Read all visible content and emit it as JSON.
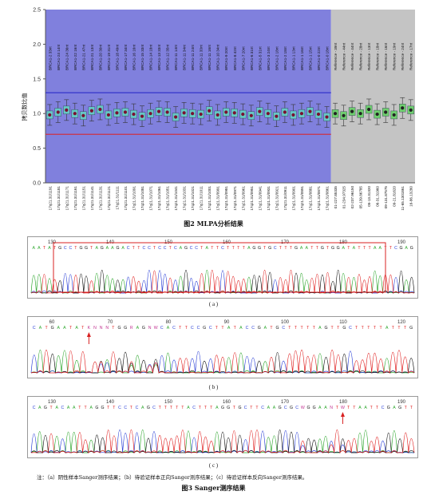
{
  "fig2": {
    "caption": "图2    MLPA分析结果",
    "ylabel": "拷贝数比值",
    "chart_data": {
      "type": "scatter",
      "ylabel": "拷贝数比值",
      "ylim": [
        0,
        2.5
      ],
      "yticks": [
        "0.0",
        "0.5",
        "1.0",
        "1.5",
        "2.0",
        "2.5"
      ],
      "upper_threshold": 1.3,
      "lower_threshold": 0.7,
      "threshold_colors": {
        "upper": "#3333cc",
        "lower": "#cc3344"
      },
      "region_colors": {
        "test": "#8080dd",
        "reference": "#c4c4c4"
      },
      "test_probes": [
        "BRCA1-2 33nt",
        "BRCA1-24 14nt",
        "BRCA1-24 36nt",
        "BRCA1-22 16nt",
        "BRCA1-21 47nt",
        "BRCA1-21 13nt",
        "BRCA1-20 30nt",
        "BRCA1-19 31nt",
        "BRCA1-18 49nt",
        "BRCA1-17 34nt",
        "BRCA1-16 16nt",
        "BRCA1-15 33nt",
        "BRCA1-14 18nt",
        "BRCA1-13 33nt",
        "BRCA1-12 35nt",
        "BRCA1-11 14nt",
        "BRCA1-11 34nt",
        "BRCA1-11 24nt",
        "BRCA1-11 33nt",
        "BRCA1-11 16nt",
        "BRCA1-10 34nt",
        "BRCA1-9 20nt",
        "BRCA1-8 42nt",
        "BRCA1-7 20nt",
        "BRCA1-6 31nt",
        "BRCA1-5 31nt",
        "BRCA1-3 24nt",
        "BRCA1-2 18nt",
        "BRCA1-2 18nt",
        "BRCA1-1 13nt",
        "BRCA1-1 16nt",
        "BRCA1-1 15nt",
        "BRCA1-0 22nt",
        "BRCA1-0 18nt"
      ],
      "test_values": [
        0.98,
        1.02,
        1.05,
        1.0,
        0.97,
        1.04,
        1.06,
        0.98,
        1.01,
        1.02,
        0.99,
        0.96,
        1.0,
        1.03,
        1.02,
        0.95,
        1.01,
        1.0,
        0.99,
        1.04,
        0.98,
        1.02,
        1.01,
        0.99,
        0.97,
        1.03,
        1.0,
        0.96,
        1.02,
        0.98,
        1.0,
        1.03,
        0.99,
        0.95
      ],
      "reference_probes": [
        "Reference - 39nt",
        "Reference - 44nt",
        "Reference - 44nt",
        "Reference - 28nt",
        "Reference - 13nt",
        "Reference - 18nt",
        "Reference - 16nt",
        "Reference - 19nt",
        "Reference - 24nt",
        "Reference - 17nt"
      ],
      "reference_values": [
        1.0,
        0.97,
        1.03,
        1.0,
        1.06,
        0.99,
        1.02,
        0.98,
        1.08,
        1.05
      ],
      "test_locations": [
        "17q21.31/1191",
        "17q21.31/1181",
        "17q21.31/1171",
        "17q21.31/1161",
        "17q21.31/1151",
        "17q21.31/1141",
        "17q21.31/1131",
        "17q21.31/1121",
        "17q21.31/1111",
        "17q21.31/1101",
        "17q21.31/1091",
        "17q21.31/1081",
        "17q21.31/1071",
        "17q21.31/1061",
        "17q21.31/1051",
        "17q21.31/1041",
        "17q21.31/1031",
        "17q21.31/1021",
        "17q21.31/1011",
        "17q21.31/1001",
        "17q21.31/0991",
        "17q21.31/0981",
        "17q21.31/0971",
        "17q21.31/0961",
        "17q21.31/0951",
        "17q21.31/0941",
        "17q21.31/0931",
        "17q21.31/0921",
        "17q21.31/0911",
        "17q21.31/0901",
        "17q21.31/0891",
        "17q21.31/0881",
        "17q21.31/0871",
        "17q21.31/0861"
      ],
      "reference_locations": [
        "01-227.85335",
        "01-234.97325",
        "02-237.96150",
        "05-139.86785",
        "05-13.31320",
        "06-31.31960",
        "09-131.87575",
        "09-21.81620",
        "11-65.1301861",
        "16-86.13280"
      ],
      "grid": false
    }
  },
  "fig3": {
    "caption": "图3    Sanger测序结果",
    "panel_labels": [
      "( a )",
      "( b )",
      "( c )"
    ],
    "note": "注：（a）阴性样本Sanger测序结果；（b）待验证样本正向Sanger测序结果；（c）待验证样本反向Sanger测序结果。",
    "panels": [
      {
        "sequence": "AATAT GCCTGGTAGAAGACTTCCTCCTCAGCCTATTCTTTTAGGTGCTTTGAATTGTGGATATTTAATTCGAG",
        "positions": [
          "130",
          "140",
          "150",
          "160",
          "170",
          "180",
          "190"
        ]
      },
      {
        "sequence": "CATGAATATKNNNTGGRAGNWCACTTCCGCTTATACCGATGCTTTTTAGTTGCTTTTTATTTG",
        "positions": [
          "60",
          "70",
          "80",
          "90",
          "100",
          "110",
          "120"
        ]
      },
      {
        "sequence": "CAGTACAATTAGGTTCCTCAGCTTTTTACTTTAGGTGCTTCAAGCGCWGGAANTWTTAATTCGAGTT",
        "positions": [
          "130",
          "140",
          "150",
          "160",
          "170",
          "180",
          "190"
        ]
      }
    ]
  }
}
